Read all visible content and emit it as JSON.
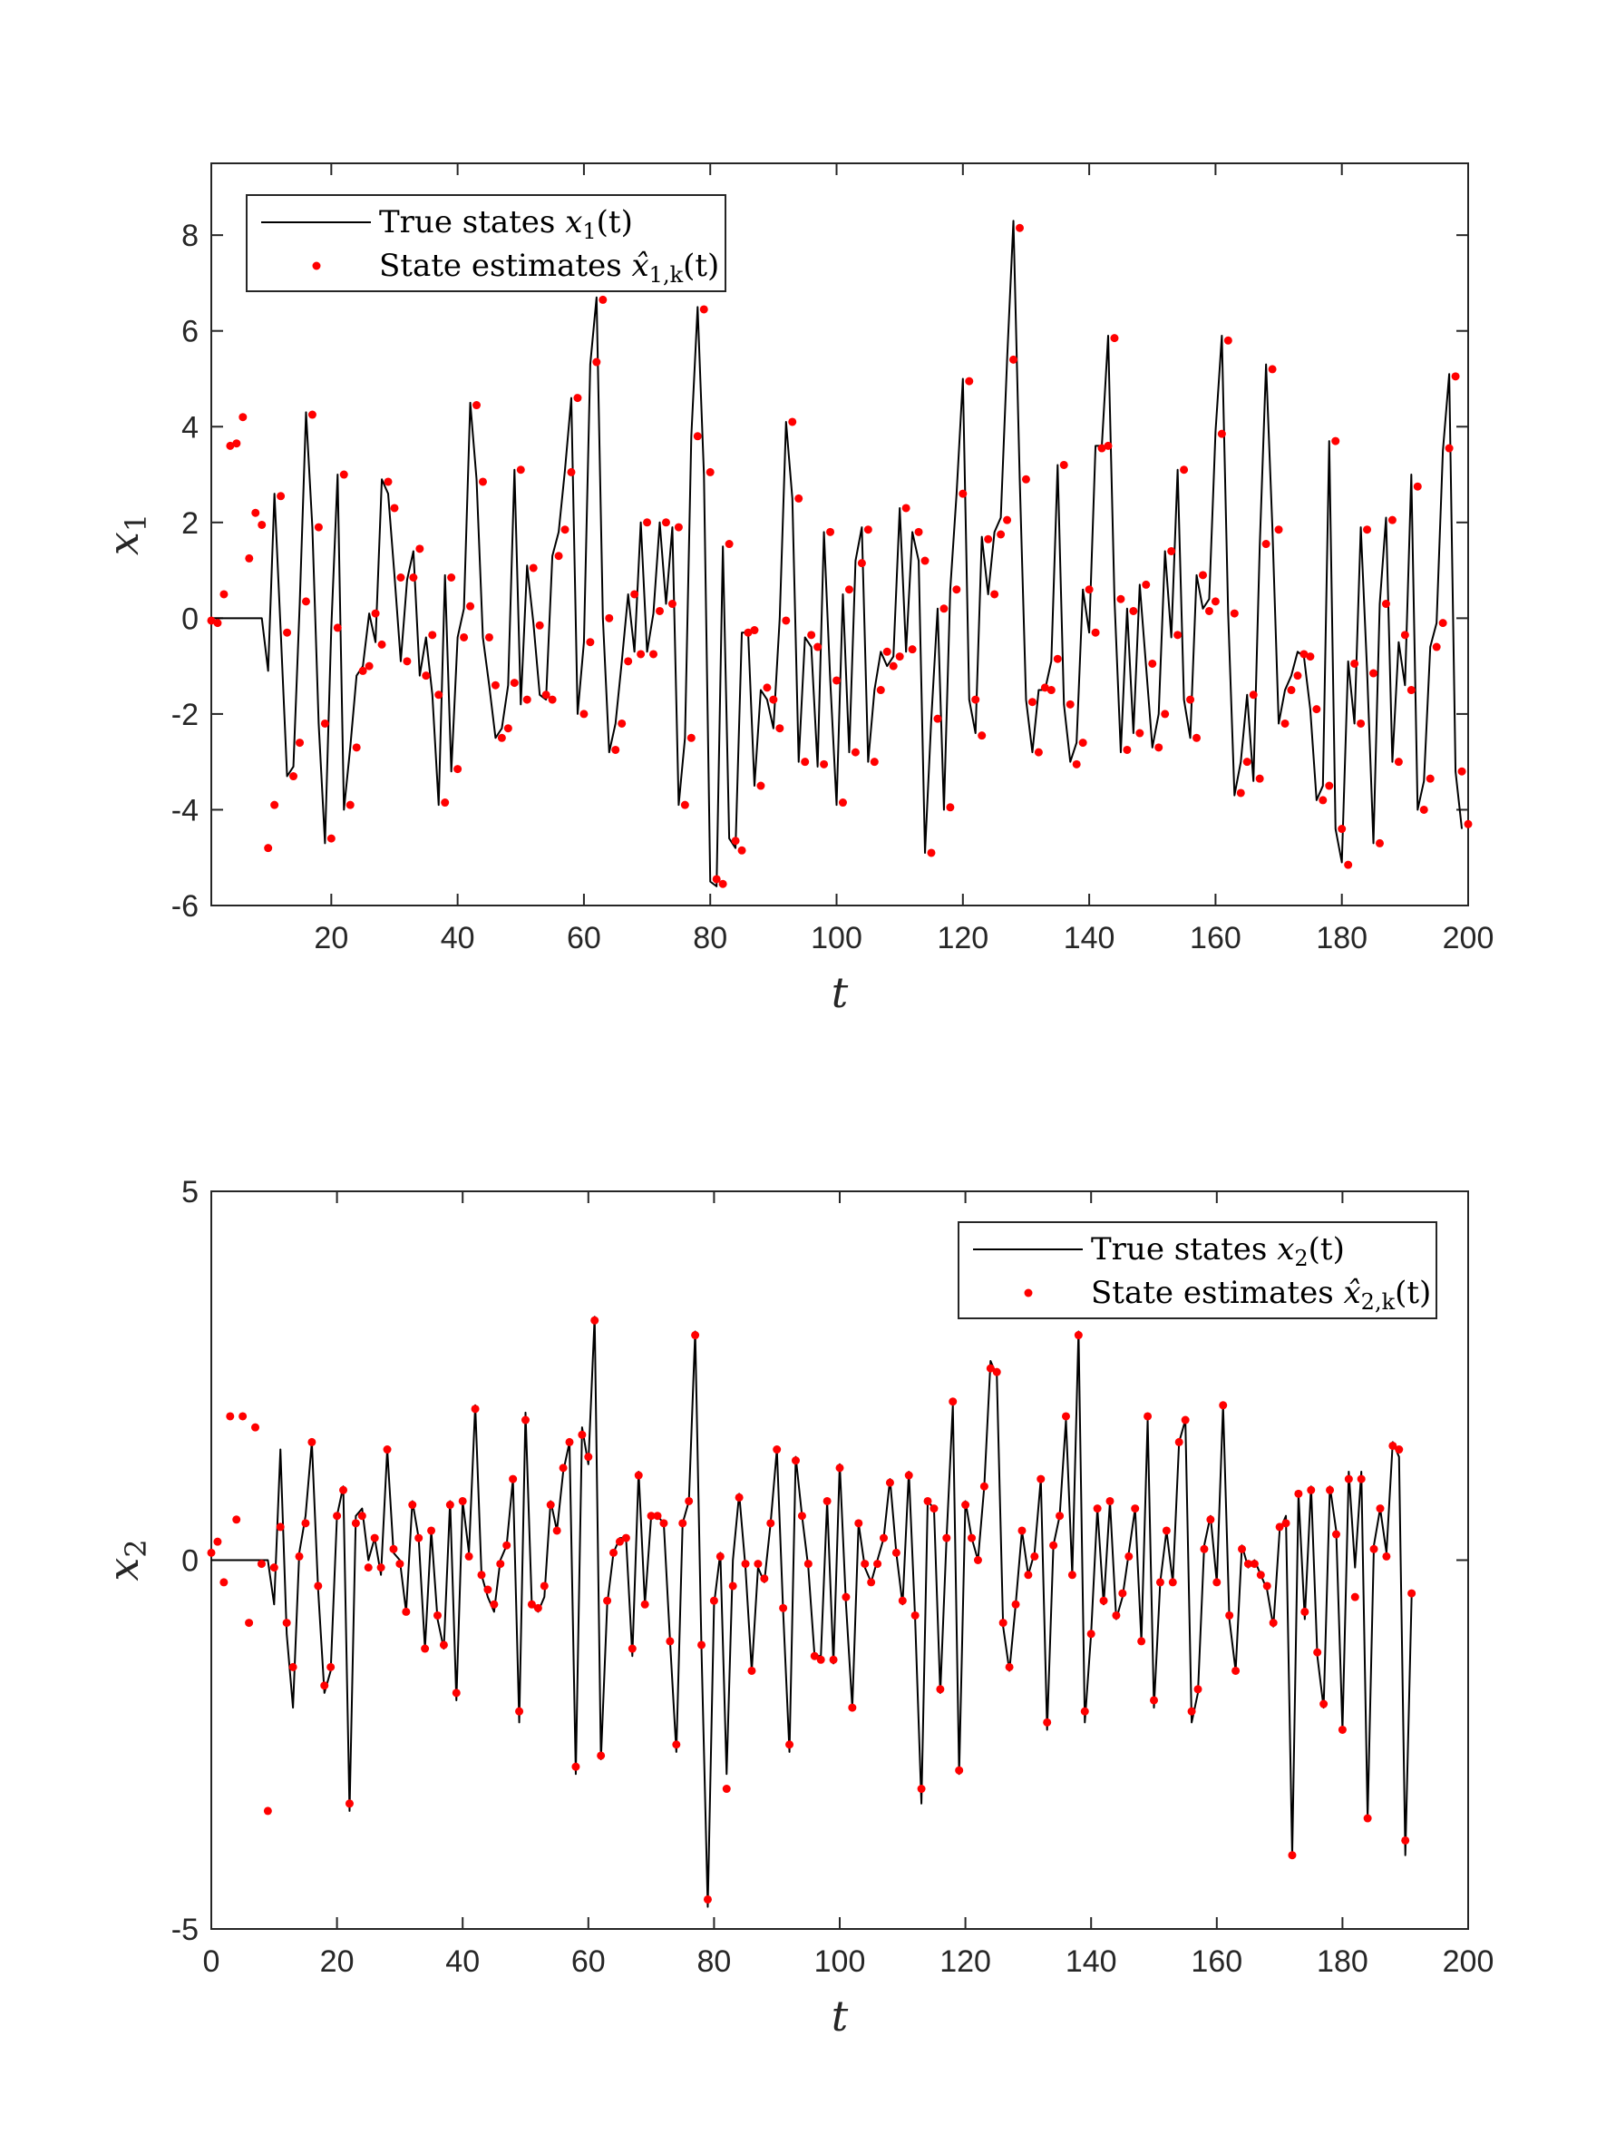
{
  "chart_data": [
    {
      "type": "line",
      "xlabel": "t",
      "ylabel": "x1",
      "ylabel_base": "x",
      "ylabel_sub": "1",
      "xlim": [
        1,
        200
      ],
      "ylim": [
        -6,
        9.5
      ],
      "xticks": [
        20,
        40,
        60,
        80,
        100,
        120,
        140,
        160,
        180,
        200
      ],
      "yticks": [
        -6,
        -4,
        -2,
        0,
        2,
        4,
        6,
        8
      ],
      "legend_position": "top-left",
      "series": [
        {
          "name": "True states x1(t)",
          "legend_prefix": "True states ",
          "legend_base": "x",
          "legend_sub": "1",
          "legend_suffix": "(t)",
          "style": "line",
          "color": "#000000"
        },
        {
          "name": "State estimates x̂1,k(t)",
          "legend_prefix": "State estimates ",
          "legend_base": "x̂",
          "legend_sub": "1,k",
          "legend_suffix": "(t)",
          "style": "marker",
          "color": "#ff0000"
        }
      ],
      "true_values": [
        0,
        0,
        0,
        0,
        0,
        0,
        0,
        0,
        0,
        -1.1,
        2.6,
        -0.3,
        -3.3,
        -3.1,
        0.3,
        4.3,
        1.9,
        -2.2,
        -4.7,
        -0.2,
        3.0,
        -4.0,
        -2.7,
        -1.2,
        -1.0,
        0.1,
        -0.5,
        2.9,
        2.6,
        0.9,
        -0.9,
        0.8,
        1.4,
        -1.2,
        -0.4,
        -1.6,
        -3.9,
        0.9,
        -3.2,
        -0.4,
        0.2,
        4.5,
        2.9,
        -0.4,
        -1.4,
        -2.5,
        -2.3,
        -1.4,
        3.1,
        -1.8,
        1.1,
        -0.1,
        -1.6,
        -1.7,
        1.3,
        1.8,
        3.1,
        4.6,
        -2.0,
        -0.5,
        5.3,
        6.7,
        0.0,
        -2.8,
        -2.2,
        -0.9,
        0.5,
        -0.7,
        2.0,
        -0.7,
        0.1,
        2.0,
        0.3,
        1.9,
        -3.9,
        -2.5,
        3.8,
        6.5,
        3.0,
        -5.5,
        -5.6,
        1.5,
        -4.6,
        -4.8,
        -0.3,
        -0.3,
        -3.5,
        -1.5,
        -1.7,
        -2.3,
        0.0,
        4.1,
        2.5,
        -3.0,
        -0.4,
        -0.6,
        -3.1,
        1.8,
        -1.3,
        -3.9,
        0.5,
        -2.8,
        1.2,
        1.9,
        -3.0,
        -1.5,
        -0.7,
        -1.0,
        -0.8,
        2.3,
        -0.7,
        1.8,
        1.2,
        -4.9,
        -2.1,
        0.2,
        -4.0,
        0.6,
        2.6,
        5.0,
        -1.7,
        -2.4,
        1.7,
        0.5,
        1.8,
        2.1,
        5.4,
        8.3,
        2.9,
        -1.7,
        -2.8,
        -1.5,
        -1.5,
        -0.9,
        3.2,
        -1.8,
        -3.0,
        -2.6,
        0.6,
        -0.3,
        3.6,
        3.6,
        5.9,
        0.4,
        -2.8,
        0.2,
        -2.4,
        0.7,
        -1.0,
        -2.7,
        -2.0,
        1.4,
        -0.4,
        3.1,
        -1.7,
        -2.5,
        0.9,
        0.2,
        0.4,
        3.9,
        5.9,
        0.1,
        -3.7,
        -3.0,
        -1.6,
        -3.4,
        1.5,
        5.3,
        1.9,
        -2.2,
        -1.5,
        -1.2,
        -0.7,
        -0.8,
        -1.9,
        -3.8,
        -3.5,
        3.7,
        -4.4,
        -5.1,
        -0.9,
        -2.2,
        1.9,
        -1.1,
        -4.7,
        0.3,
        2.1,
        -3.0,
        -0.5,
        -1.4,
        3.0,
        -4.0,
        -3.4,
        -0.6,
        -0.1,
        3.5,
        5.1,
        -3.2,
        -4.4
      ],
      "estimate_values": [
        -0.05,
        -0.1,
        0.5,
        3.6,
        3.65,
        4.2,
        1.25,
        2.2,
        1.95,
        -4.8,
        -3.9,
        2.55,
        -0.3,
        -3.3,
        -2.6,
        0.35,
        4.25,
        1.9,
        -2.2,
        -4.6,
        -0.2,
        3.0,
        -3.9,
        -2.7,
        -1.1,
        -1.0,
        0.1,
        -0.55,
        2.85,
        2.3,
        0.85,
        -0.9,
        0.85,
        1.45,
        -1.2,
        -0.35,
        -1.6,
        -3.85,
        0.85,
        -3.15,
        -0.4,
        0.25,
        4.45,
        2.85,
        -0.4,
        -1.4,
        -2.5,
        -2.3,
        -1.35,
        3.1,
        -1.7,
        1.05,
        -0.15,
        -1.6,
        -1.7,
        1.3,
        1.85,
        3.05,
        4.6,
        -2.0,
        -0.5,
        5.35,
        6.65,
        0.0,
        -2.75,
        -2.2,
        -0.9,
        0.5,
        -0.75,
        2.0,
        -0.75,
        0.15,
        2.0,
        0.3,
        1.9,
        -3.9,
        -2.5,
        3.8,
        6.45,
        3.05,
        -5.45,
        -5.55,
        1.55,
        -4.65,
        -4.85,
        -0.3,
        -0.25,
        -3.5,
        -1.45,
        -1.7,
        -2.3,
        -0.05,
        4.1,
        2.5,
        -3.0,
        -0.35,
        -0.6,
        -3.05,
        1.8,
        -1.3,
        -3.85,
        0.6,
        -2.8,
        1.15,
        1.85,
        -3.0,
        -1.5,
        -0.7,
        -1.0,
        -0.8,
        2.3,
        -0.65,
        1.8,
        1.2,
        -4.9,
        -2.1,
        0.2,
        -3.95,
        0.6,
        2.6,
        4.95,
        -1.7,
        -2.45,
        1.65,
        0.5,
        1.75,
        2.05,
        5.4,
        8.15,
        2.9,
        -1.75,
        -2.8,
        -1.45,
        -1.5,
        -0.85,
        3.2,
        -1.8,
        -3.05,
        -2.6,
        0.6,
        -0.3,
        3.55,
        3.6,
        5.85,
        0.4,
        -2.75,
        0.15,
        -2.4,
        0.7,
        -0.95,
        -2.7,
        -2.0,
        1.4,
        -0.35,
        3.1,
        -1.7,
        -2.5,
        0.9,
        0.15,
        0.35,
        3.85,
        5.8,
        0.1,
        -3.65,
        -3.0,
        -1.6,
        -3.35,
        1.55,
        5.2,
        1.85,
        -2.2,
        -1.5,
        -1.2,
        -0.75,
        -0.8,
        -1.9,
        -3.8,
        -3.5,
        3.7,
        -4.4,
        -5.15,
        -0.95,
        -2.2,
        1.85,
        -1.15,
        -4.7,
        0.3,
        2.05,
        -3.0,
        -0.35,
        -1.5,
        2.75,
        -4.0,
        -3.35,
        -0.6,
        -0.1,
        3.55,
        5.05,
        -3.2,
        -4.3
      ]
    },
    {
      "type": "line",
      "xlabel": "t",
      "ylabel": "x2",
      "ylabel_base": "x",
      "ylabel_sub": "2",
      "xlim": [
        0,
        200
      ],
      "ylim": [
        -5,
        5
      ],
      "xticks": [
        0,
        20,
        40,
        60,
        80,
        100,
        120,
        140,
        160,
        180,
        200
      ],
      "yticks": [
        -5,
        0,
        5
      ],
      "legend_position": "top-right",
      "series": [
        {
          "name": "True states x2(t)",
          "legend_prefix": "True states ",
          "legend_base": "x",
          "legend_sub": "2",
          "legend_suffix": "(t)",
          "style": "line",
          "color": "#000000"
        },
        {
          "name": "State estimates x̂2,k(t)",
          "legend_prefix": "State estimates ",
          "legend_base": "x̂",
          "legend_sub": "2,k",
          "legend_suffix": "(t)",
          "style": "marker",
          "color": "#ff0000"
        }
      ],
      "true_values": [
        0,
        0,
        0,
        0,
        0,
        0,
        0,
        0,
        0,
        0,
        -0.6,
        1.5,
        -1.0,
        -2.0,
        0.1,
        0.6,
        1.6,
        -0.4,
        -1.8,
        -1.5,
        0.6,
        1.0,
        -3.4,
        0.6,
        0.7,
        0.0,
        0.3,
        -0.2,
        1.5,
        0.1,
        0.0,
        -0.7,
        0.8,
        0.3,
        -1.2,
        0.4,
        -0.8,
        -1.2,
        0.8,
        -1.9,
        0.8,
        0.1,
        2.1,
        -0.2,
        -0.5,
        -0.7,
        0.0,
        0.2,
        1.1,
        -2.2,
        2.0,
        -0.6,
        -0.7,
        -0.5,
        0.8,
        0.4,
        1.2,
        1.6,
        -2.9,
        1.8,
        1.3,
        3.3,
        -2.7,
        -0.6,
        0.1,
        0.3,
        0.3,
        -1.3,
        1.2,
        -0.6,
        0.6,
        0.6,
        0.5,
        -1.1,
        -2.6,
        0.5,
        0.8,
        3.1,
        -1.2,
        -4.7,
        -0.6,
        0.1,
        -2.9,
        0.0,
        0.9,
        -0.1,
        -1.5,
        -0.1,
        -0.3,
        0.5,
        1.5,
        -0.7,
        -2.6,
        1.4,
        0.6,
        -0.1,
        -1.3,
        -1.3,
        0.8,
        -1.4,
        1.3,
        -0.6,
        -2.0,
        0.5,
        -0.1,
        -0.3,
        0.0,
        0.3,
        1.1,
        0.1,
        -0.6,
        1.2,
        -0.8,
        -3.3,
        0.8,
        0.7,
        -1.8,
        0.3,
        2.1,
        -2.9,
        0.8,
        0.3,
        0.0,
        1.0,
        2.7,
        2.5,
        -0.9,
        -1.5,
        -0.6,
        0.4,
        -0.2,
        0.1,
        1.1,
        -2.3,
        0.2,
        0.6,
        1.9,
        -0.2,
        3.1,
        -2.2,
        -1.0,
        0.7,
        -0.6,
        0.8,
        -0.8,
        -0.5,
        0.1,
        0.7,
        -1.1,
        1.9,
        -2.0,
        -0.3,
        0.4,
        -0.3,
        1.6,
        1.9,
        -2.2,
        -1.8,
        0.2,
        0.6,
        -0.3,
        2.1,
        -0.8,
        -1.5,
        0.2,
        -0.1,
        0.0,
        -0.2,
        -0.4,
        -0.9,
        0.4,
        0.6,
        -4.0,
        0.9,
        -0.8,
        1.0,
        -1.3,
        -2.0,
        1.0,
        0.4,
        -2.3,
        1.2,
        -0.1,
        1.2,
        -3.5,
        0.2,
        0.7,
        0.1,
        1.6,
        1.4,
        -4.0,
        -0.5
      ],
      "estimate_values": [
        0.1,
        0.25,
        -0.3,
        1.95,
        0.55,
        1.95,
        -0.85,
        1.8,
        -0.05,
        -3.4,
        -0.1,
        0.45,
        -0.85,
        -1.45,
        0.05,
        0.5,
        1.6,
        -0.35,
        -1.7,
        -1.45,
        0.6,
        0.95,
        -3.3,
        0.5,
        0.6,
        -0.1,
        0.3,
        -0.1,
        1.5,
        0.15,
        -0.05,
        -0.7,
        0.75,
        0.3,
        -1.2,
        0.4,
        -0.75,
        -1.15,
        0.75,
        -1.8,
        0.8,
        0.05,
        2.05,
        -0.2,
        -0.4,
        -0.6,
        -0.05,
        0.2,
        1.1,
        -2.05,
        1.9,
        -0.6,
        -0.65,
        -0.35,
        0.75,
        0.4,
        1.25,
        1.6,
        -2.8,
        1.7,
        1.4,
        3.25,
        -2.65,
        -0.55,
        0.1,
        0.25,
        0.3,
        -1.2,
        1.15,
        -0.6,
        0.6,
        0.6,
        0.5,
        -1.1,
        -2.5,
        0.5,
        0.8,
        3.05,
        -1.15,
        -4.6,
        -0.55,
        0.05,
        -3.1,
        -0.35,
        0.85,
        -0.05,
        -1.5,
        -0.05,
        -0.25,
        0.5,
        1.5,
        -0.65,
        -2.5,
        1.35,
        0.6,
        -0.05,
        -1.3,
        -1.35,
        0.8,
        -1.35,
        1.25,
        -0.5,
        -2.0,
        0.5,
        -0.05,
        -0.3,
        -0.05,
        0.3,
        1.05,
        0.1,
        -0.55,
        1.15,
        -0.75,
        -3.1,
        0.8,
        0.7,
        -1.75,
        0.3,
        2.15,
        -2.85,
        0.75,
        0.3,
        0.0,
        1.0,
        2.6,
        2.55,
        -0.85,
        -1.45,
        -0.6,
        0.4,
        -0.2,
        0.05,
        1.1,
        -2.2,
        0.2,
        0.6,
        1.95,
        -0.2,
        3.05,
        -2.05,
        -1.0,
        0.7,
        -0.55,
        0.8,
        -0.75,
        -0.45,
        0.05,
        0.7,
        -1.1,
        1.95,
        -1.9,
        -0.3,
        0.4,
        -0.3,
        1.6,
        1.9,
        -2.05,
        -1.75,
        0.15,
        0.55,
        -0.3,
        2.1,
        -0.75,
        -1.5,
        0.15,
        -0.05,
        -0.05,
        -0.2,
        -0.35,
        -0.85,
        0.45,
        0.5,
        -4.0,
        0.9,
        -0.7,
        0.95,
        -1.25,
        -1.95,
        0.95,
        0.35,
        -2.3,
        1.1,
        -0.5,
        1.1,
        -3.5,
        0.15,
        0.7,
        0.05,
        1.55,
        1.5,
        -3.8,
        -0.45
      ]
    }
  ]
}
